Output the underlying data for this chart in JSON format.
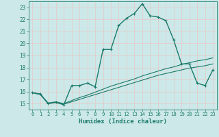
{
  "title": "",
  "xlabel": "Humidex (Indice chaleur)",
  "ylabel": "",
  "background_color": "#cce8e8",
  "grid_color": "#e8c8c8",
  "line_color": "#1a7a6a",
  "xlim": [
    -0.5,
    23.5
  ],
  "ylim": [
    14.5,
    23.5
  ],
  "xticks": [
    0,
    1,
    2,
    3,
    4,
    5,
    6,
    7,
    8,
    9,
    10,
    11,
    12,
    13,
    14,
    15,
    16,
    17,
    18,
    19,
    20,
    21,
    22,
    23
  ],
  "yticks": [
    15,
    16,
    17,
    18,
    19,
    20,
    21,
    22,
    23
  ],
  "curve1_x": [
    0,
    1,
    2,
    3,
    4,
    5,
    6,
    7,
    8,
    9,
    10,
    11,
    12,
    13,
    14,
    15,
    16,
    17,
    18,
    19,
    20,
    21,
    22,
    23
  ],
  "curve1_y": [
    15.9,
    15.8,
    15.0,
    15.1,
    14.9,
    16.5,
    16.5,
    16.7,
    16.4,
    19.5,
    19.5,
    21.5,
    22.1,
    22.5,
    23.3,
    22.3,
    22.2,
    21.9,
    20.3,
    18.3,
    18.3,
    16.7,
    16.5,
    17.8
  ],
  "curve2_x": [
    0,
    1,
    2,
    3,
    4,
    5,
    6,
    7,
    8,
    9,
    10,
    11,
    12,
    13,
    14,
    15,
    16,
    17,
    18,
    19,
    20,
    21,
    22,
    23
  ],
  "curve2_y": [
    15.9,
    15.75,
    15.0,
    15.1,
    14.95,
    15.15,
    15.35,
    15.55,
    15.75,
    15.95,
    16.15,
    16.35,
    16.55,
    16.75,
    16.95,
    17.15,
    17.35,
    17.5,
    17.65,
    17.8,
    17.95,
    18.05,
    18.15,
    18.3
  ],
  "curve3_x": [
    0,
    1,
    2,
    3,
    4,
    5,
    6,
    7,
    8,
    9,
    10,
    11,
    12,
    13,
    14,
    15,
    16,
    17,
    18,
    19,
    20,
    21,
    22,
    23
  ],
  "curve3_y": [
    15.9,
    15.8,
    15.05,
    15.15,
    15.0,
    15.25,
    15.5,
    15.7,
    15.95,
    16.2,
    16.45,
    16.65,
    16.85,
    17.05,
    17.3,
    17.5,
    17.7,
    17.9,
    18.05,
    18.25,
    18.4,
    18.55,
    18.65,
    18.8
  ]
}
